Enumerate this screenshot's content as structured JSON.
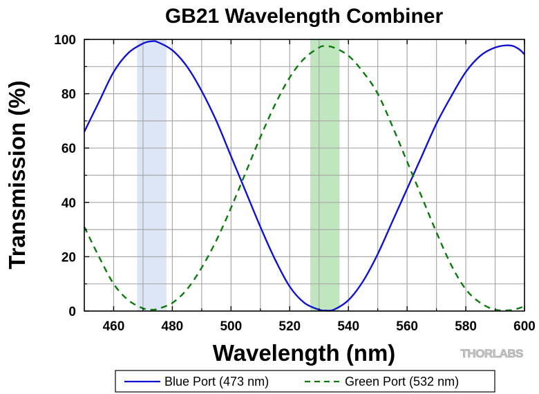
{
  "chart_data": {
    "type": "line",
    "title": "GB21 Wavelength Combiner",
    "xlabel": "Wavelength (nm)",
    "ylabel": "Transmission (%)",
    "xlim": [
      450,
      600
    ],
    "ylim": [
      0,
      100
    ],
    "xticks": [
      460,
      480,
      500,
      520,
      540,
      560,
      580,
      600
    ],
    "yticks": [
      0,
      20,
      40,
      60,
      80,
      100
    ],
    "grid": true,
    "legend_position": "bottom",
    "shaded_bands": [
      {
        "x": [
          468,
          478
        ],
        "color": "#dce6f7"
      },
      {
        "x": [
          527,
          537
        ],
        "color": "#bfe6bf"
      }
    ],
    "series": [
      {
        "name": "Blue Port (473 nm)",
        "color": "#1010d0",
        "style": "solid",
        "x": [
          450,
          455,
          460,
          465,
          470,
          473,
          475,
          480,
          485,
          490,
          495,
          500,
          505,
          510,
          515,
          520,
          525,
          530,
          532,
          535,
          540,
          545,
          550,
          555,
          560,
          565,
          570,
          575,
          580,
          585,
          590,
          595,
          598,
          600
        ],
        "values": [
          66,
          77,
          88,
          95,
          98.5,
          99.3,
          99,
          96,
          90,
          81,
          70,
          57,
          44,
          31,
          19,
          9,
          3,
          0.5,
          0.2,
          0.5,
          4,
          11,
          21,
          33,
          45,
          57,
          69,
          79,
          88,
          94,
          97,
          97.8,
          96.5,
          94.5
        ]
      },
      {
        "name": "Green Port (532 nm)",
        "color": "#0a7a0a",
        "style": "dashed",
        "x": [
          450,
          455,
          460,
          465,
          470,
          473,
          475,
          480,
          485,
          490,
          495,
          500,
          505,
          510,
          515,
          520,
          525,
          530,
          532,
          535,
          540,
          545,
          550,
          555,
          560,
          565,
          570,
          575,
          580,
          585,
          590,
          595,
          598,
          600
        ],
        "values": [
          31,
          20,
          10,
          4,
          1,
          0.5,
          0.8,
          3,
          8,
          16,
          26,
          38,
          51,
          64,
          76,
          86,
          93,
          97,
          97.5,
          97,
          94,
          88,
          80,
          68,
          55,
          42,
          29,
          17,
          8,
          3,
          0.5,
          0.3,
          1,
          1.8
        ]
      }
    ]
  },
  "logo": "THORLABS"
}
